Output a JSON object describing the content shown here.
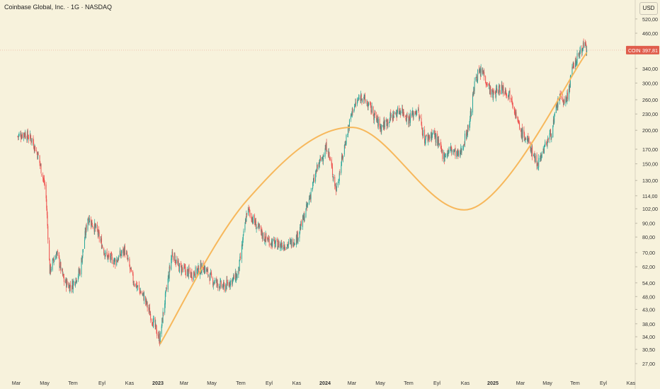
{
  "header": {
    "title": "Coinbase Global, Inc. · 1G · NASDAQ",
    "currency": "USD"
  },
  "price_label": {
    "symbol": "COIN",
    "value": "397,81",
    "color": "#e05d4c"
  },
  "colors": {
    "background": "#f7f2dc",
    "up": "#26a69a",
    "down": "#ef5350",
    "curve": "#f7b85c"
  },
  "chart_data": {
    "type": "candlestick",
    "y_scale": "log",
    "y_ticks": [
      "520,00",
      "460,00",
      "340,00",
      "300,00",
      "260,00",
      "230,00",
      "200,00",
      "170,00",
      "150,00",
      "130,00",
      "114,00",
      "102,00",
      "90,00",
      "80,00",
      "70,00",
      "62,00",
      "54,00",
      "48,00",
      "43,00",
      "38,00",
      "34,00",
      "30,50",
      "27,00"
    ],
    "x_ticks": [
      "Mar",
      "May",
      "Tem",
      "Eyl",
      "Kas",
      "2023",
      "Mar",
      "May",
      "Tem",
      "Eyl",
      "Kas",
      "2024",
      "Mar",
      "May",
      "Tem",
      "Eyl",
      "Kas",
      "2025",
      "Mar",
      "May",
      "Tem",
      "Eyl",
      "Kas"
    ],
    "x_ticks_bold": [
      "2023",
      "2024",
      "2025"
    ],
    "price_path": [
      [
        "2022-03-01",
        190
      ],
      [
        "2022-03-15",
        195
      ],
      [
        "2022-04-01",
        185
      ],
      [
        "2022-04-15",
        160
      ],
      [
        "2022-05-01",
        120
      ],
      [
        "2022-05-10",
        60
      ],
      [
        "2022-05-25",
        70
      ],
      [
        "2022-06-10",
        55
      ],
      [
        "2022-06-25",
        52
      ],
      [
        "2022-07-15",
        60
      ],
      [
        "2022-08-01",
        95
      ],
      [
        "2022-08-20",
        85
      ],
      [
        "2022-09-10",
        68
      ],
      [
        "2022-10-01",
        65
      ],
      [
        "2022-10-20",
        72
      ],
      [
        "2022-11-08",
        55
      ],
      [
        "2022-12-01",
        48
      ],
      [
        "2022-12-31",
        35
      ],
      [
        "2023-01-05",
        33
      ],
      [
        "2023-01-15",
        45
      ],
      [
        "2023-02-01",
        70
      ],
      [
        "2023-02-15",
        62
      ],
      [
        "2023-03-15",
        58
      ],
      [
        "2023-04-10",
        62
      ],
      [
        "2023-05-01",
        55
      ],
      [
        "2023-05-25",
        52
      ],
      [
        "2023-06-10",
        55
      ],
      [
        "2023-06-25",
        58
      ],
      [
        "2023-07-15",
        102
      ],
      [
        "2023-08-01",
        90
      ],
      [
        "2023-08-20",
        80
      ],
      [
        "2023-09-15",
        75
      ],
      [
        "2023-10-15",
        75
      ],
      [
        "2023-11-01",
        80
      ],
      [
        "2023-11-20",
        100
      ],
      [
        "2023-12-15",
        145
      ],
      [
        "2024-01-05",
        175
      ],
      [
        "2024-01-25",
        120
      ],
      [
        "2024-02-15",
        185
      ],
      [
        "2024-03-01",
        240
      ],
      [
        "2024-03-20",
        270
      ],
      [
        "2024-04-10",
        240
      ],
      [
        "2024-05-01",
        205
      ],
      [
        "2024-05-25",
        225
      ],
      [
        "2024-06-15",
        240
      ],
      [
        "2024-07-01",
        220
      ],
      [
        "2024-07-20",
        240
      ],
      [
        "2024-08-05",
        185
      ],
      [
        "2024-08-25",
        195
      ],
      [
        "2024-09-15",
        160
      ],
      [
        "2024-10-01",
        170
      ],
      [
        "2024-10-20",
        160
      ],
      [
        "2024-11-10",
        210
      ],
      [
        "2024-11-25",
        320
      ],
      [
        "2024-12-10",
        330
      ],
      [
        "2024-12-31",
        270
      ],
      [
        "2025-01-20",
        290
      ],
      [
        "2025-02-10",
        270
      ],
      [
        "2025-03-01",
        200
      ],
      [
        "2025-03-20",
        180
      ],
      [
        "2025-04-08",
        150
      ],
      [
        "2025-04-25",
        175
      ],
      [
        "2025-05-10",
        200
      ],
      [
        "2025-05-25",
        265
      ],
      [
        "2025-06-10",
        255
      ],
      [
        "2025-06-25",
        345
      ],
      [
        "2025-07-10",
        390
      ],
      [
        "2025-07-18",
        420
      ],
      [
        "2025-07-25",
        397.81
      ]
    ],
    "curve": [
      [
        "2023-01-06",
        32
      ],
      [
        "2023-07-15",
        110
      ],
      [
        "2024-03-01",
        205
      ],
      [
        "2024-11-15",
        102
      ],
      [
        "2025-07-25",
        390
      ]
    ],
    "last_value": 397.81
  }
}
